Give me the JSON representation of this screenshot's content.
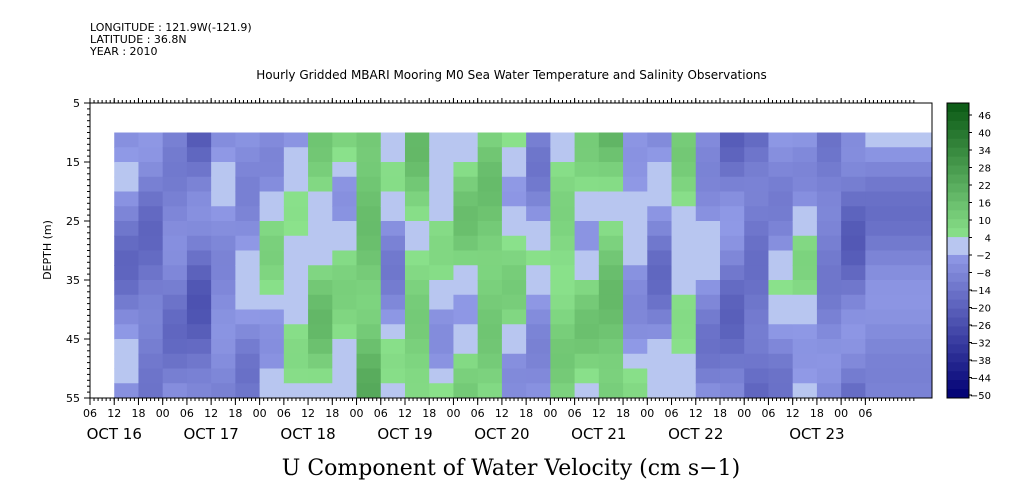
{
  "header": {
    "longitude": "LONGITUDE : 121.9W(-121.9)",
    "latitude": "LATITUDE : 36.8N",
    "year": "YEAR : 2010"
  },
  "chart_data": {
    "type": "heatmap",
    "title": "Hourly Gridded MBARI Mooring M0 Sea Water Temperature and Salinity Observations",
    "xlabel": "U Component of Water Velocity (cm s−1)",
    "ylabel": "DEPTH (m)",
    "y_ticks": [
      "5",
      "15",
      "25",
      "35",
      "45",
      "55"
    ],
    "ylim": [
      5,
      55
    ],
    "y_inverted": true,
    "x_hour_ticks": [
      "06",
      "12",
      "18",
      "00",
      "06",
      "12",
      "18",
      "00",
      "06",
      "12",
      "18",
      "00",
      "06",
      "12",
      "18",
      "00",
      "06",
      "12",
      "18",
      "00",
      "06",
      "12",
      "18",
      "00",
      "06",
      "12",
      "18",
      "00",
      "06",
      "12",
      "18",
      "00",
      "06"
    ],
    "x_date_labels": [
      "OCT 16",
      "OCT 17",
      "OCT 18",
      "OCT 19",
      "OCT 20",
      "OCT 21",
      "OCT 22",
      "OCT 23"
    ],
    "data_start_hour": 12,
    "data_depth_range": [
      10,
      55
    ],
    "colorbar": {
      "labels": [
        "46",
        "40",
        "34",
        "28",
        "22",
        "16",
        "10",
        "4",
        "−2",
        "−8",
        "−14",
        "−20",
        "−26",
        "−32",
        "−38",
        "−44",
        "−50"
      ],
      "range": [
        -50,
        49
      ],
      "step": 3
    },
    "time_series_columns": [
      {
        "hour": 12,
        "value": -9
      },
      {
        "hour": 18,
        "value": -12
      },
      {
        "hour": 24,
        "value": -10
      },
      {
        "hour": 30,
        "value": -15
      },
      {
        "hour": 36,
        "value": -6
      },
      {
        "hour": 42,
        "value": -5
      },
      {
        "hour": 48,
        "value": 1
      },
      {
        "hour": 54,
        "value": 2
      },
      {
        "hour": 60,
        "value": 8
      },
      {
        "hour": 66,
        "value": 4
      },
      {
        "hour": 72,
        "value": 14
      },
      {
        "hour": 78,
        "value": -3
      },
      {
        "hour": 84,
        "value": 9
      },
      {
        "hour": 90,
        "value": 2
      },
      {
        "hour": 96,
        "value": 6
      },
      {
        "hour": 102,
        "value": 11
      },
      {
        "hour": 108,
        "value": 3
      },
      {
        "hour": 114,
        "value": -4
      },
      {
        "hour": 120,
        "value": 7
      },
      {
        "hour": 126,
        "value": 5
      },
      {
        "hour": 132,
        "value": 12
      },
      {
        "hour": 138,
        "value": -2
      },
      {
        "hour": 144,
        "value": -8
      },
      {
        "hour": 150,
        "value": 4
      },
      {
        "hour": 156,
        "value": -6
      },
      {
        "hour": 162,
        "value": -12
      },
      {
        "hour": 168,
        "value": -14
      },
      {
        "hour": 174,
        "value": -5
      },
      {
        "hour": 180,
        "value": 1
      },
      {
        "hour": 186,
        "value": -10
      },
      {
        "hour": 192,
        "value": -13
      },
      {
        "hour": 198,
        "value": -8
      }
    ]
  }
}
